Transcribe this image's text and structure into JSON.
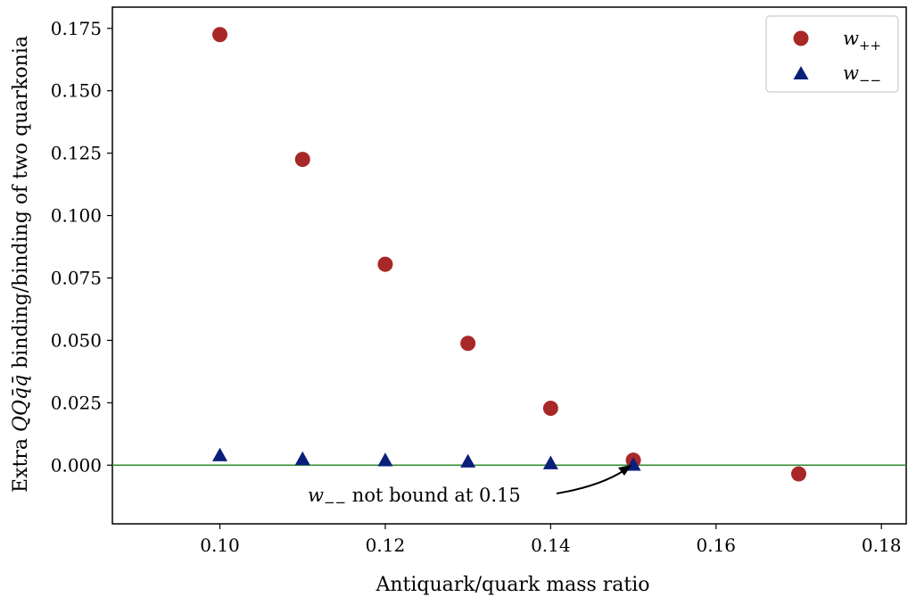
{
  "chart_data": {
    "type": "scatter",
    "xlabel": "Antiquark/quark mass ratio",
    "ylabel_parts": {
      "prefix": "Extra ",
      "math_q": "QQ",
      "math_qbar": "q̄q̄",
      "suffix": " binding/binding of two quarkonia"
    },
    "xlim": [
      0.087,
      0.183
    ],
    "ylim": [
      -0.0235,
      0.1835
    ],
    "x_ticks": [
      0.1,
      0.12,
      0.14,
      0.16,
      0.18
    ],
    "x_tick_labels": [
      "0.10",
      "0.12",
      "0.14",
      "0.16",
      "0.18"
    ],
    "y_ticks": [
      0.0,
      0.025,
      0.05,
      0.075,
      0.1,
      0.125,
      0.15,
      0.175
    ],
    "y_tick_labels": [
      "0.000",
      "0.025",
      "0.050",
      "0.075",
      "0.100",
      "0.125",
      "0.150",
      "0.175"
    ],
    "grid": false,
    "legend_position": "top-right",
    "zero_line_color": "#2e8b2e",
    "series": [
      {
        "name": "w++",
        "name_base": "w",
        "name_sub": "++",
        "marker": "circle",
        "color": "#a82828",
        "x": [
          0.1,
          0.11,
          0.12,
          0.13,
          0.14,
          0.15,
          0.17
        ],
        "y": [
          0.1725,
          0.1225,
          0.0805,
          0.0488,
          0.0228,
          0.002,
          -0.0035
        ]
      },
      {
        "name": "w−−",
        "name_base": "w",
        "name_sub": "−−",
        "marker": "triangle",
        "color": "#0a1f7a",
        "x": [
          0.1,
          0.11,
          0.12,
          0.13,
          0.14,
          0.15
        ],
        "y": [
          0.004,
          0.0025,
          0.002,
          0.0015,
          0.0008,
          0.0002
        ]
      }
    ],
    "annotation": {
      "math_base": "w",
      "math_sub": "−−",
      "text": " not bound at 0.15",
      "target_x": 0.15,
      "target_y": 0.0
    }
  }
}
